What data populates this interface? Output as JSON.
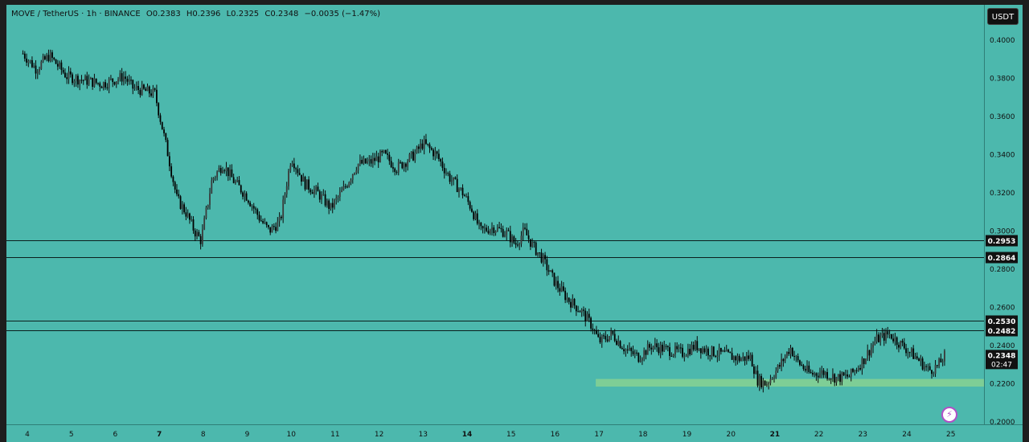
{
  "legend": {
    "symbol": "MOVE / TetherUS · 1h · BINANCE",
    "open": "O0.2383",
    "high": "H0.2396",
    "low": "L0.2325",
    "close": "C0.2348",
    "change": "−0.0035 (−1.47%)"
  },
  "currency_button": "USDT",
  "countdown": "02:47",
  "flash_icon_glyph": "⚡",
  "chart_data": {
    "type": "candlestick",
    "symbol": "MOVE/USDT",
    "interval": "1h",
    "exchange": "BINANCE",
    "ylim": [
      0.2,
      0.4
    ],
    "y_ticks": [
      "0.4000",
      "0.3800",
      "0.3600",
      "0.3400",
      "0.3200",
      "0.3000",
      "0.2800",
      "0.2600",
      "0.2400",
      "0.2200",
      "0.2000"
    ],
    "x_ticks": [
      "4",
      "5",
      "6",
      "7",
      "8",
      "9",
      "10",
      "11",
      "12",
      "13",
      "14",
      "15",
      "16",
      "17",
      "18",
      "19",
      "20",
      "21",
      "22",
      "23",
      "24",
      "25"
    ],
    "x_ticks_bold": [
      "7",
      "14",
      "21"
    ],
    "horizontal_levels": [
      {
        "price": 0.2953,
        "label": "0.2953"
      },
      {
        "price": 0.2864,
        "label": "0.2864"
      },
      {
        "price": 0.253,
        "label": "0.2530"
      },
      {
        "price": 0.2482,
        "label": "0.2482"
      }
    ],
    "current_price": {
      "price": 0.2348,
      "label": "0.2348"
    },
    "support_zone": {
      "from_day": 17.0,
      "to_day": 25.7,
      "low": 0.2185,
      "high": 0.2225,
      "color": "#8fd68f"
    },
    "price_path": [
      [
        3.9,
        0.393
      ],
      [
        4.2,
        0.385
      ],
      [
        4.5,
        0.392
      ],
      [
        4.9,
        0.381
      ],
      [
        5.3,
        0.379
      ],
      [
        5.7,
        0.377
      ],
      [
        6.2,
        0.381
      ],
      [
        6.4,
        0.375
      ],
      [
        6.9,
        0.372
      ],
      [
        7.2,
        0.34
      ],
      [
        7.4,
        0.317
      ],
      [
        7.6,
        0.31
      ],
      [
        7.8,
        0.3
      ],
      [
        7.95,
        0.295
      ],
      [
        8.2,
        0.327
      ],
      [
        8.45,
        0.335
      ],
      [
        8.7,
        0.326
      ],
      [
        9.0,
        0.318
      ],
      [
        9.3,
        0.306
      ],
      [
        9.5,
        0.3
      ],
      [
        9.75,
        0.305
      ],
      [
        10.0,
        0.339
      ],
      [
        10.3,
        0.325
      ],
      [
        10.6,
        0.32
      ],
      [
        10.9,
        0.312
      ],
      [
        11.2,
        0.322
      ],
      [
        11.5,
        0.335
      ],
      [
        11.8,
        0.336
      ],
      [
        12.1,
        0.34
      ],
      [
        12.4,
        0.333
      ],
      [
        12.8,
        0.34
      ],
      [
        13.0,
        0.346
      ],
      [
        13.3,
        0.34
      ],
      [
        13.6,
        0.328
      ],
      [
        13.9,
        0.32
      ],
      [
        14.1,
        0.312
      ],
      [
        14.3,
        0.3
      ],
      [
        14.6,
        0.302
      ],
      [
        14.9,
        0.299
      ],
      [
        15.1,
        0.293
      ],
      [
        15.3,
        0.3
      ],
      [
        15.5,
        0.292
      ],
      [
        15.7,
        0.286
      ],
      [
        16.0,
        0.273
      ],
      [
        16.3,
        0.264
      ],
      [
        16.6,
        0.258
      ],
      [
        16.85,
        0.25
      ],
      [
        17.0,
        0.242
      ],
      [
        17.3,
        0.246
      ],
      [
        17.6,
        0.238
      ],
      [
        17.9,
        0.234
      ],
      [
        18.2,
        0.24
      ],
      [
        18.5,
        0.238
      ],
      [
        18.9,
        0.236
      ],
      [
        19.2,
        0.24
      ],
      [
        19.5,
        0.237
      ],
      [
        19.9,
        0.235
      ],
      [
        20.2,
        0.233
      ],
      [
        20.45,
        0.234
      ],
      [
        20.6,
        0.222
      ],
      [
        20.8,
        0.22
      ],
      [
        21.1,
        0.229
      ],
      [
        21.35,
        0.239
      ],
      [
        21.5,
        0.232
      ],
      [
        21.8,
        0.225
      ],
      [
        22.1,
        0.226
      ],
      [
        22.4,
        0.223
      ],
      [
        22.7,
        0.224
      ],
      [
        23.0,
        0.232
      ],
      [
        23.3,
        0.243
      ],
      [
        23.6,
        0.246
      ],
      [
        23.9,
        0.24
      ],
      [
        24.2,
        0.234
      ],
      [
        24.5,
        0.227
      ],
      [
        24.7,
        0.229
      ],
      [
        24.9,
        0.236
      ]
    ]
  }
}
